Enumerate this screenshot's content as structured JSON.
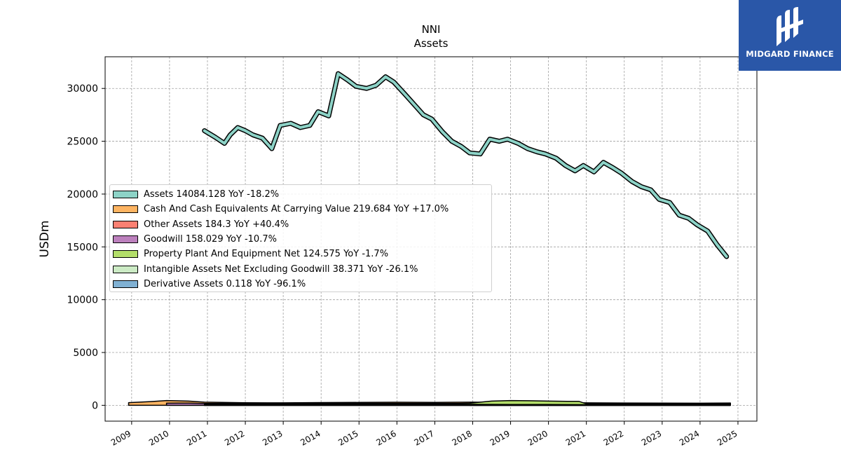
{
  "chart_data": {
    "type": "area",
    "title": "NNI",
    "subtitle": "Assets",
    "ylabel": "USDm",
    "xlabel": "",
    "xlim": [
      2008.3,
      2025.5
    ],
    "ylim": [
      -1500,
      33000
    ],
    "y_ticks": [
      0,
      5000,
      10000,
      15000,
      20000,
      25000,
      30000
    ],
    "x_ticks": [
      "2009",
      "2010",
      "2011",
      "2012",
      "2013",
      "2014",
      "2015",
      "2016",
      "2017",
      "2018",
      "2019",
      "2020",
      "2021",
      "2022",
      "2023",
      "2024",
      "2025"
    ],
    "grid": true,
    "legend_position": "center-left",
    "series": [
      {
        "name": "Assets",
        "legend": "Assets  14084.128 YoY -18.2%",
        "color": "#8dd3c7",
        "style": "line",
        "x": [
          2010.92,
          2011.2,
          2011.45,
          2011.6,
          2011.8,
          2012.0,
          2012.2,
          2012.45,
          2012.7,
          2012.92,
          2013.2,
          2013.45,
          2013.7,
          2013.92,
          2014.2,
          2014.45,
          2014.7,
          2014.92,
          2015.2,
          2015.45,
          2015.7,
          2015.92,
          2016.2,
          2016.45,
          2016.7,
          2016.92,
          2017.2,
          2017.45,
          2017.7,
          2017.92,
          2018.2,
          2018.45,
          2018.7,
          2018.92,
          2019.2,
          2019.45,
          2019.7,
          2019.92,
          2020.2,
          2020.45,
          2020.7,
          2020.92,
          2021.2,
          2021.45,
          2021.7,
          2021.92,
          2022.2,
          2022.45,
          2022.7,
          2022.92,
          2023.2,
          2023.45,
          2023.7,
          2023.92,
          2024.2,
          2024.45,
          2024.7
        ],
        "y": [
          26000,
          25400,
          24800,
          25600,
          26300,
          26000,
          25600,
          25300,
          24300,
          26500,
          26700,
          26300,
          26500,
          27800,
          27400,
          31400,
          30800,
          30200,
          30000,
          30300,
          31100,
          30600,
          29500,
          28500,
          27500,
          27100,
          25900,
          25000,
          24500,
          23900,
          23800,
          25200,
          25000,
          25200,
          24800,
          24300,
          24000,
          23800,
          23400,
          22700,
          22200,
          22700,
          22100,
          23000,
          22500,
          22000,
          21200,
          20700,
          20400,
          19500,
          19200,
          18000,
          17700,
          17100,
          16500,
          15200,
          14084
        ]
      },
      {
        "name": "Cash And Cash Equivalents At Carrying Value",
        "legend": "Cash And Cash Equivalents At Carrying Value  219.684 YoY +17.0%",
        "color": "#fdb462",
        "style": "area",
        "x": [
          2008.92,
          2009.5,
          2009.92,
          2010.5,
          2010.92,
          2012,
          2013,
          2014,
          2015,
          2016,
          2017,
          2018,
          2019,
          2020,
          2021,
          2022,
          2023,
          2024,
          2024.8
        ],
        "y": [
          250,
          350,
          450,
          400,
          300,
          240,
          230,
          260,
          270,
          290,
          280,
          300,
          260,
          250,
          230,
          220,
          210,
          200,
          220
        ]
      },
      {
        "name": "Other Assets",
        "legend": "Other Assets  184.3 YoY +40.4%",
        "color": "#fb8072",
        "style": "area",
        "x": [
          2010.92,
          2012,
          2013,
          2014,
          2015,
          2016,
          2017,
          2018,
          2019,
          2020,
          2021,
          2022,
          2023,
          2024,
          2024.8
        ],
        "y": [
          120,
          130,
          140,
          150,
          160,
          150,
          140,
          130,
          140,
          150,
          170,
          150,
          140,
          130,
          184
        ]
      },
      {
        "name": "Goodwill",
        "legend": "Goodwill  158.029 YoY -10.7%",
        "color": "#bc80bd",
        "style": "area",
        "x": [
          2009.92,
          2010.5,
          2010.92,
          2012,
          2013,
          2014,
          2015,
          2016,
          2017,
          2018,
          2019,
          2020,
          2021,
          2022,
          2023,
          2024,
          2024.8
        ],
        "y": [
          200,
          210,
          180,
          170,
          175,
          180,
          190,
          185,
          180,
          180,
          175,
          175,
          170,
          165,
          165,
          160,
          158
        ]
      },
      {
        "name": "Property Plant And Equipment Net",
        "legend": "Property Plant And Equipment Net  124.575 YoY -1.7%",
        "color": "#b3de69",
        "style": "area",
        "x": [
          2010.92,
          2012,
          2013,
          2014,
          2015,
          2016,
          2017,
          2017.92,
          2018.5,
          2019,
          2019.5,
          2020,
          2020.5,
          2020.8,
          2021,
          2022,
          2023,
          2024,
          2024.8
        ],
        "y": [
          80,
          90,
          90,
          100,
          110,
          110,
          120,
          200,
          400,
          450,
          430,
          400,
          380,
          380,
          140,
          130,
          130,
          125,
          125
        ]
      },
      {
        "name": "Intangible Assets Net Excluding Goodwill",
        "legend": "Intangible Assets Net Excluding Goodwill  38.371 YoY -26.1%",
        "color": "#ccebc5",
        "style": "area",
        "x": [
          2010.92,
          2012,
          2013,
          2014,
          2015,
          2016,
          2017,
          2017.92,
          2019,
          2020,
          2021,
          2022,
          2023,
          2024,
          2024.8
        ],
        "y": [
          60,
          70,
          70,
          75,
          80,
          85,
          80,
          90,
          80,
          70,
          60,
          55,
          50,
          45,
          38
        ]
      },
      {
        "name": "Derivative Assets",
        "legend": "Derivative Assets  0.118 YoY -96.1%",
        "color": "#80b1d3",
        "style": "area",
        "x": [
          2017.92,
          2019,
          2020,
          2021,
          2022,
          2023,
          2024,
          2024.8
        ],
        "y": [
          5,
          4,
          6,
          3,
          3,
          3,
          3,
          0.118
        ]
      }
    ]
  },
  "branding": {
    "logo_text": "MIDGARD FINANCE",
    "logo_icon": "midgard-logo-icon",
    "background_color": "#2a57a8"
  }
}
